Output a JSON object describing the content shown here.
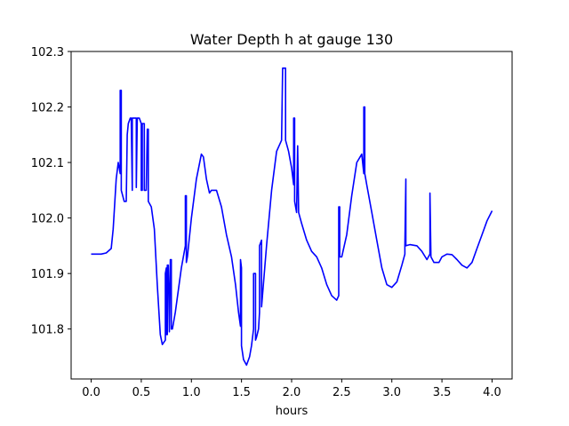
{
  "chart_data": {
    "type": "line",
    "title": "Water Depth h at gauge 130",
    "xlabel": "hours",
    "ylabel": "",
    "xlim": [
      -0.2,
      4.2
    ],
    "ylim": [
      101.71,
      102.3
    ],
    "x_ticks": [
      "0.0",
      "0.5",
      "1.0",
      "1.5",
      "2.0",
      "2.5",
      "3.0",
      "3.5",
      "4.0"
    ],
    "y_ticks": [
      "101.8",
      "101.9",
      "102.0",
      "102.1",
      "102.2",
      "102.3"
    ],
    "grid": false,
    "line_color": "#0000ff",
    "series": [
      {
        "x": [
          0.0,
          0.1,
          0.15,
          0.2,
          0.22,
          0.25,
          0.27,
          0.29,
          0.29,
          0.3,
          0.3,
          0.33,
          0.35,
          0.36,
          0.37,
          0.39,
          0.4,
          0.41,
          0.41,
          0.43,
          0.45,
          0.45,
          0.46,
          0.48,
          0.5,
          0.5,
          0.51,
          0.51,
          0.53,
          0.53,
          0.55,
          0.56,
          0.57,
          0.57,
          0.6,
          0.63,
          0.66,
          0.69,
          0.71,
          0.74,
          0.74,
          0.75,
          0.75,
          0.76,
          0.76,
          0.77,
          0.78,
          0.78,
          0.79,
          0.8,
          0.8,
          0.81,
          0.82,
          0.84,
          0.87,
          0.9,
          0.94,
          0.94,
          0.95,
          0.95,
          0.96,
          1.0,
          1.05,
          1.1,
          1.12,
          1.15,
          1.18,
          1.2,
          1.25,
          1.3,
          1.35,
          1.4,
          1.44,
          1.47,
          1.49,
          1.49,
          1.5,
          1.5,
          1.52,
          1.55,
          1.58,
          1.6,
          1.62,
          1.62,
          1.64,
          1.64,
          1.65,
          1.67,
          1.68,
          1.68,
          1.7,
          1.7,
          1.75,
          1.8,
          1.85,
          1.9,
          1.91,
          1.91,
          1.94,
          1.94,
          1.97,
          2.0,
          2.02,
          2.02,
          2.03,
          2.03,
          2.05,
          2.06,
          2.06,
          2.07,
          2.07,
          2.1,
          2.15,
          2.2,
          2.25,
          2.3,
          2.35,
          2.4,
          2.45,
          2.47,
          2.47,
          2.48,
          2.48,
          2.5,
          2.55,
          2.6,
          2.65,
          2.7,
          2.72,
          2.72,
          2.73,
          2.73,
          2.74,
          2.75,
          2.8,
          2.85,
          2.9,
          2.95,
          3.0,
          3.05,
          3.1,
          3.13,
          3.13,
          3.14,
          3.14,
          3.18,
          3.25,
          3.3,
          3.35,
          3.38,
          3.38,
          3.39,
          3.39,
          3.42,
          3.47,
          3.5,
          3.55,
          3.6,
          3.65,
          3.7,
          3.75,
          3.8,
          3.85,
          3.9,
          3.95,
          4.0
        ],
        "y": [
          101.935,
          101.935,
          101.937,
          101.945,
          101.98,
          102.07,
          102.1,
          102.08,
          102.23,
          102.23,
          102.05,
          102.03,
          102.03,
          102.15,
          102.17,
          102.18,
          102.18,
          102.05,
          102.18,
          102.18,
          102.18,
          102.055,
          102.18,
          102.18,
          102.17,
          102.05,
          102.05,
          102.17,
          102.17,
          102.05,
          102.05,
          102.16,
          102.16,
          102.03,
          102.02,
          101.98,
          101.88,
          101.79,
          101.772,
          101.78,
          101.9,
          101.91,
          101.79,
          101.79,
          101.915,
          101.915,
          101.795,
          101.795,
          101.925,
          101.925,
          101.8,
          101.8,
          101.81,
          101.83,
          101.87,
          101.91,
          101.95,
          102.04,
          102.04,
          101.92,
          101.93,
          102.0,
          102.07,
          102.115,
          102.11,
          102.07,
          102.045,
          102.05,
          102.05,
          102.02,
          101.97,
          101.93,
          101.88,
          101.83,
          101.805,
          101.925,
          101.91,
          101.77,
          101.745,
          101.735,
          101.75,
          101.77,
          101.8,
          101.9,
          101.9,
          101.78,
          101.785,
          101.8,
          101.83,
          101.95,
          101.96,
          101.84,
          101.95,
          102.05,
          102.12,
          102.14,
          102.27,
          102.27,
          102.27,
          102.14,
          102.12,
          102.09,
          102.06,
          102.18,
          102.18,
          102.03,
          102.01,
          102.13,
          102.13,
          102.01,
          102.01,
          101.99,
          101.96,
          101.94,
          101.93,
          101.91,
          101.88,
          101.86,
          101.852,
          101.86,
          102.02,
          102.02,
          101.93,
          101.93,
          101.97,
          102.04,
          102.1,
          102.115,
          102.08,
          102.2,
          102.2,
          102.08,
          102.07,
          102.06,
          102.01,
          101.96,
          101.91,
          101.88,
          101.875,
          101.885,
          101.915,
          101.935,
          101.95,
          102.07,
          101.95,
          101.952,
          101.95,
          101.94,
          101.925,
          101.935,
          102.045,
          101.93,
          101.93,
          101.92,
          101.92,
          101.93,
          101.935,
          101.934,
          101.925,
          101.915,
          101.91,
          101.92,
          101.945,
          101.97,
          101.995,
          102.013
        ]
      }
    ]
  }
}
